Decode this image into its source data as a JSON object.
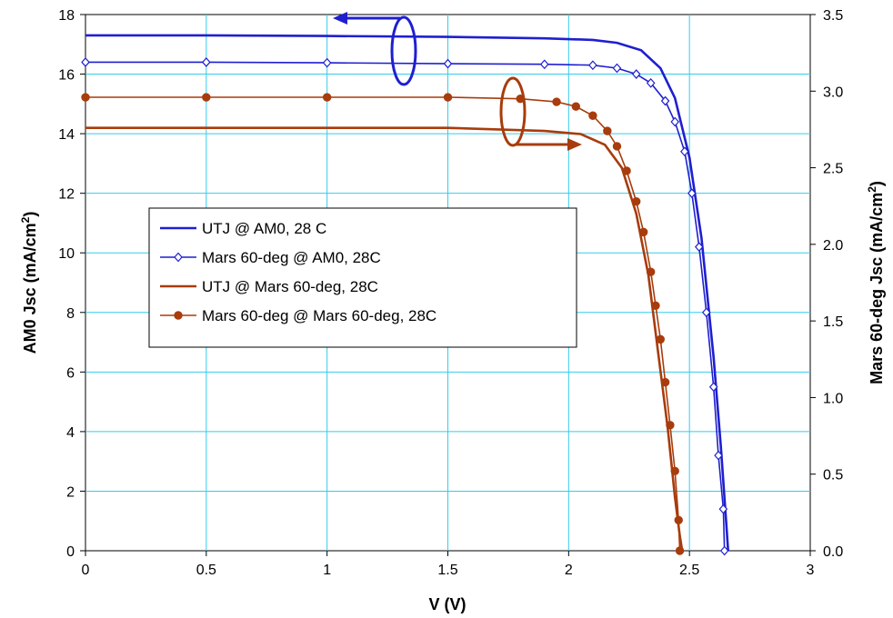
{
  "chart_data": {
    "type": "line",
    "xlabel": "V (V)",
    "ylabel_left": "AM0 Jsc (mA/cm²)",
    "ylabel_right": "Mars 60-deg Jsc (mA/cm²)",
    "xlim": [
      0,
      3
    ],
    "ylim_left": [
      0,
      18
    ],
    "ylim_right": [
      0,
      3.5
    ],
    "x_ticks": [
      "0",
      "0.5",
      "1",
      "1.5",
      "2",
      "2.5",
      "3"
    ],
    "y_left_ticks": [
      "0",
      "2",
      "4",
      "6",
      "8",
      "10",
      "12",
      "14",
      "16",
      "18"
    ],
    "y_right_ticks": [
      "0.0",
      "0.5",
      "1.0",
      "1.5",
      "2.0",
      "2.5",
      "3.0",
      "3.5"
    ],
    "grid": true,
    "legend_position": "center-left",
    "series": [
      {
        "name": "UTJ @ AM0, 28 C",
        "axis": "left",
        "color": "#1f1fd0",
        "marker": "none",
        "x": [
          0,
          0.5,
          1.0,
          1.5,
          1.9,
          2.1,
          2.2,
          2.3,
          2.38,
          2.44,
          2.5,
          2.55,
          2.6,
          2.63,
          2.65,
          2.66
        ],
        "y": [
          17.3,
          17.3,
          17.28,
          17.25,
          17.2,
          17.15,
          17.05,
          16.8,
          16.2,
          15.2,
          13.2,
          10.5,
          6.5,
          3.5,
          1.2,
          0
        ]
      },
      {
        "name": "Mars 60-deg @ AM0, 28C",
        "axis": "left",
        "color": "#1f1fd0",
        "marker": "diamond",
        "x": [
          0,
          0.5,
          1.0,
          1.5,
          1.9,
          2.1,
          2.2,
          2.28,
          2.34,
          2.4,
          2.44,
          2.48,
          2.51,
          2.54,
          2.57,
          2.6,
          2.62,
          2.64,
          2.645
        ],
        "y": [
          16.4,
          16.4,
          16.38,
          16.35,
          16.33,
          16.3,
          16.2,
          16.0,
          15.7,
          15.1,
          14.4,
          13.4,
          12.0,
          10.2,
          8.0,
          5.5,
          3.2,
          1.4,
          0
        ]
      },
      {
        "name": "UTJ @ Mars 60-deg, 28C",
        "axis": "right",
        "color": "#a83c0c",
        "marker": "none",
        "x": [
          0,
          0.5,
          1.0,
          1.5,
          1.9,
          2.05,
          2.15,
          2.22,
          2.28,
          2.33,
          2.37,
          2.41,
          2.44,
          2.46,
          2.47
        ],
        "y": [
          2.76,
          2.76,
          2.76,
          2.76,
          2.74,
          2.72,
          2.65,
          2.5,
          2.2,
          1.8,
          1.3,
          0.8,
          0.35,
          0.1,
          0
        ]
      },
      {
        "name": "Mars 60-deg @ Mars 60-deg, 28C",
        "axis": "right",
        "color": "#a83c0c",
        "marker": "circle",
        "x": [
          0,
          0.5,
          1.0,
          1.5,
          1.8,
          1.95,
          2.03,
          2.1,
          2.16,
          2.2,
          2.24,
          2.28,
          2.31,
          2.34,
          2.36,
          2.38,
          2.4,
          2.42,
          2.44,
          2.455,
          2.46
        ],
        "y": [
          2.96,
          2.96,
          2.96,
          2.96,
          2.95,
          2.93,
          2.9,
          2.84,
          2.74,
          2.64,
          2.48,
          2.28,
          2.08,
          1.82,
          1.6,
          1.38,
          1.1,
          0.82,
          0.52,
          0.2,
          0
        ]
      }
    ]
  }
}
